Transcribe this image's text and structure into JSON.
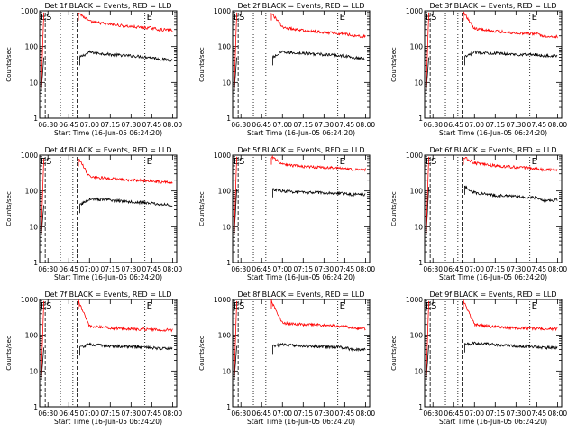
{
  "figure": {
    "x_label": "Start Time (16-Jun-05 06:24:20)",
    "y_label": "Counts/sec",
    "y_ticks": [
      "1",
      "10",
      "100",
      "1000"
    ],
    "x_ticks": [
      "06:30",
      "06:45",
      "07:00",
      "07:15",
      "07:30",
      "07:45",
      "08:00"
    ],
    "marker_labels": [
      "E",
      "S",
      "E"
    ],
    "series_colors": {
      "events": "#000000",
      "lld": "#ff0000"
    }
  },
  "chart_data": [
    {
      "type": "line",
      "title": "Det 1f BLACK = Events, RED = LLD",
      "xlabel": "Start Time (16-Jun-05 06:24:20)",
      "ylabel": "Counts/sec",
      "ylim": [
        1,
        1000
      ],
      "y_scale": "log",
      "x_range": [
        "06:24",
        "08:03"
      ],
      "series": [
        {
          "name": "Events",
          "color": "#000000",
          "x": [
            "06:53",
            "07:00",
            "07:15",
            "07:30",
            "07:45",
            "07:50",
            "08:00"
          ],
          "values": [
            50,
            70,
            60,
            55,
            50,
            45,
            42
          ]
        },
        {
          "name": "LLD",
          "color": "#ff0000",
          "x": [
            "06:52",
            "07:00",
            "07:15",
            "07:30",
            "07:45",
            "07:50",
            "08:00"
          ],
          "values": [
            900,
            500,
            420,
            360,
            330,
            300,
            290
          ]
        }
      ]
    },
    {
      "type": "line",
      "title": "Det 2f BLACK = Events, RED = LLD",
      "xlabel": "Start Time (16-Jun-05 06:24:20)",
      "ylabel": "Counts/sec",
      "ylim": [
        1,
        1000
      ],
      "y_scale": "log",
      "x_range": [
        "06:24",
        "08:03"
      ],
      "series": [
        {
          "name": "Events",
          "color": "#000000",
          "x": [
            "06:53",
            "07:00",
            "07:15",
            "07:30",
            "07:45",
            "07:50",
            "08:00"
          ],
          "values": [
            50,
            70,
            65,
            60,
            55,
            50,
            45
          ]
        },
        {
          "name": "LLD",
          "color": "#ff0000",
          "x": [
            "06:52",
            "07:00",
            "07:15",
            "07:30",
            "07:45",
            "07:50",
            "08:00"
          ],
          "values": [
            900,
            350,
            280,
            250,
            230,
            210,
            190
          ]
        }
      ]
    },
    {
      "type": "line",
      "title": "Det 3f BLACK = Events, RED = LLD",
      "xlabel": "Start Time (16-Jun-05 06:24:20)",
      "ylabel": "Counts/sec",
      "ylim": [
        1,
        1000
      ],
      "y_scale": "log",
      "x_range": [
        "06:24",
        "08:03"
      ],
      "series": [
        {
          "name": "Events",
          "color": "#000000",
          "x": [
            "06:53",
            "07:00",
            "07:15",
            "07:30",
            "07:45",
            "07:50",
            "08:00"
          ],
          "values": [
            50,
            70,
            65,
            60,
            60,
            55,
            55
          ]
        },
        {
          "name": "LLD",
          "color": "#ff0000",
          "x": [
            "06:52",
            "07:00",
            "07:15",
            "07:30",
            "07:45",
            "07:50",
            "08:00"
          ],
          "values": [
            900,
            320,
            270,
            240,
            230,
            200,
            190
          ]
        }
      ]
    },
    {
      "type": "line",
      "title": "Det 4f BLACK = Events, RED = LLD",
      "xlabel": "Start Time (16-Jun-05 06:24:20)",
      "ylabel": "Counts/sec",
      "ylim": [
        1,
        1000
      ],
      "y_scale": "log",
      "x_range": [
        "06:24",
        "08:03"
      ],
      "series": [
        {
          "name": "Events",
          "color": "#000000",
          "x": [
            "06:53",
            "07:00",
            "07:15",
            "07:30",
            "07:45",
            "07:50",
            "08:00"
          ],
          "values": [
            40,
            60,
            55,
            50,
            45,
            42,
            40
          ]
        },
        {
          "name": "LLD",
          "color": "#ff0000",
          "x": [
            "06:52",
            "07:00",
            "07:15",
            "07:30",
            "07:45",
            "07:50",
            "08:00"
          ],
          "values": [
            800,
            250,
            220,
            200,
            190,
            180,
            170
          ]
        }
      ]
    },
    {
      "type": "line",
      "title": "Det 5f BLACK = Events, RED = LLD",
      "xlabel": "Start Time (16-Jun-05 06:24:20)",
      "ylabel": "Counts/sec",
      "ylim": [
        1,
        1000
      ],
      "y_scale": "log",
      "x_range": [
        "06:24",
        "08:03"
      ],
      "series": [
        {
          "name": "Events",
          "color": "#000000",
          "x": [
            "06:53",
            "07:00",
            "07:15",
            "07:30",
            "07:45",
            "07:50",
            "08:00"
          ],
          "values": [
            110,
            100,
            90,
            90,
            85,
            80,
            80
          ]
        },
        {
          "name": "LLD",
          "color": "#ff0000",
          "x": [
            "06:52",
            "07:00",
            "07:15",
            "07:30",
            "07:45",
            "07:50",
            "08:00"
          ],
          "values": [
            900,
            550,
            480,
            450,
            420,
            400,
            400
          ]
        }
      ]
    },
    {
      "type": "line",
      "title": "Det 6f BLACK = Events, RED = LLD",
      "xlabel": "Start Time (16-Jun-05 06:24:20)",
      "ylabel": "Counts/sec",
      "ylim": [
        1,
        1000
      ],
      "y_scale": "log",
      "x_range": [
        "06:24",
        "08:03"
      ],
      "series": [
        {
          "name": "Events",
          "color": "#000000",
          "x": [
            "06:53",
            "07:00",
            "07:15",
            "07:30",
            "07:45",
            "07:50",
            "08:00"
          ],
          "values": [
            130,
            90,
            75,
            70,
            65,
            55,
            55
          ]
        },
        {
          "name": "LLD",
          "color": "#ff0000",
          "x": [
            "06:52",
            "07:00",
            "07:15",
            "07:30",
            "07:45",
            "07:50",
            "08:00"
          ],
          "values": [
            900,
            600,
            500,
            460,
            420,
            390,
            380
          ]
        }
      ]
    },
    {
      "type": "line",
      "title": "Det 7f BLACK = Events, RED = LLD",
      "xlabel": "Start Time (16-Jun-05 06:24:20)",
      "ylabel": "Counts/sec",
      "ylim": [
        1,
        1000
      ],
      "y_scale": "log",
      "x_range": [
        "06:24",
        "08:03"
      ],
      "series": [
        {
          "name": "Events",
          "color": "#000000",
          "x": [
            "06:53",
            "07:00",
            "07:15",
            "07:30",
            "07:45",
            "07:50",
            "08:00"
          ],
          "values": [
            45,
            55,
            50,
            48,
            45,
            42,
            42
          ]
        },
        {
          "name": "LLD",
          "color": "#ff0000",
          "x": [
            "06:52",
            "07:00",
            "07:15",
            "07:30",
            "07:45",
            "07:50",
            "08:00"
          ],
          "values": [
            900,
            180,
            160,
            150,
            145,
            140,
            140
          ]
        }
      ]
    },
    {
      "type": "line",
      "title": "Det 8f BLACK = Events, RED = LLD",
      "xlabel": "Start Time (16-Jun-05 06:24:20)",
      "ylabel": "Counts/sec",
      "ylim": [
        1,
        1000
      ],
      "y_scale": "log",
      "x_range": [
        "06:24",
        "08:03"
      ],
      "series": [
        {
          "name": "Events",
          "color": "#000000",
          "x": [
            "06:53",
            "07:00",
            "07:15",
            "07:30",
            "07:45",
            "07:50",
            "08:00"
          ],
          "values": [
            50,
            55,
            50,
            48,
            45,
            40,
            40
          ]
        },
        {
          "name": "LLD",
          "color": "#ff0000",
          "x": [
            "06:52",
            "07:00",
            "07:15",
            "07:30",
            "07:45",
            "07:50",
            "08:00"
          ],
          "values": [
            900,
            220,
            200,
            190,
            180,
            160,
            150
          ]
        }
      ]
    },
    {
      "type": "line",
      "title": "Det 9f BLACK = Events, RED = LLD",
      "xlabel": "Start Time (16-Jun-05 06:24:20)",
      "ylabel": "Counts/sec",
      "ylim": [
        1,
        1000
      ],
      "y_scale": "log",
      "x_range": [
        "06:24",
        "08:03"
      ],
      "series": [
        {
          "name": "Events",
          "color": "#000000",
          "x": [
            "06:53",
            "07:00",
            "07:15",
            "07:30",
            "07:45",
            "07:50",
            "08:00"
          ],
          "values": [
            55,
            60,
            55,
            50,
            48,
            45,
            45
          ]
        },
        {
          "name": "LLD",
          "color": "#ff0000",
          "x": [
            "06:52",
            "07:00",
            "07:15",
            "07:30",
            "07:45",
            "07:50",
            "08:00"
          ],
          "values": [
            900,
            200,
            170,
            160,
            155,
            150,
            150
          ]
        }
      ]
    }
  ]
}
